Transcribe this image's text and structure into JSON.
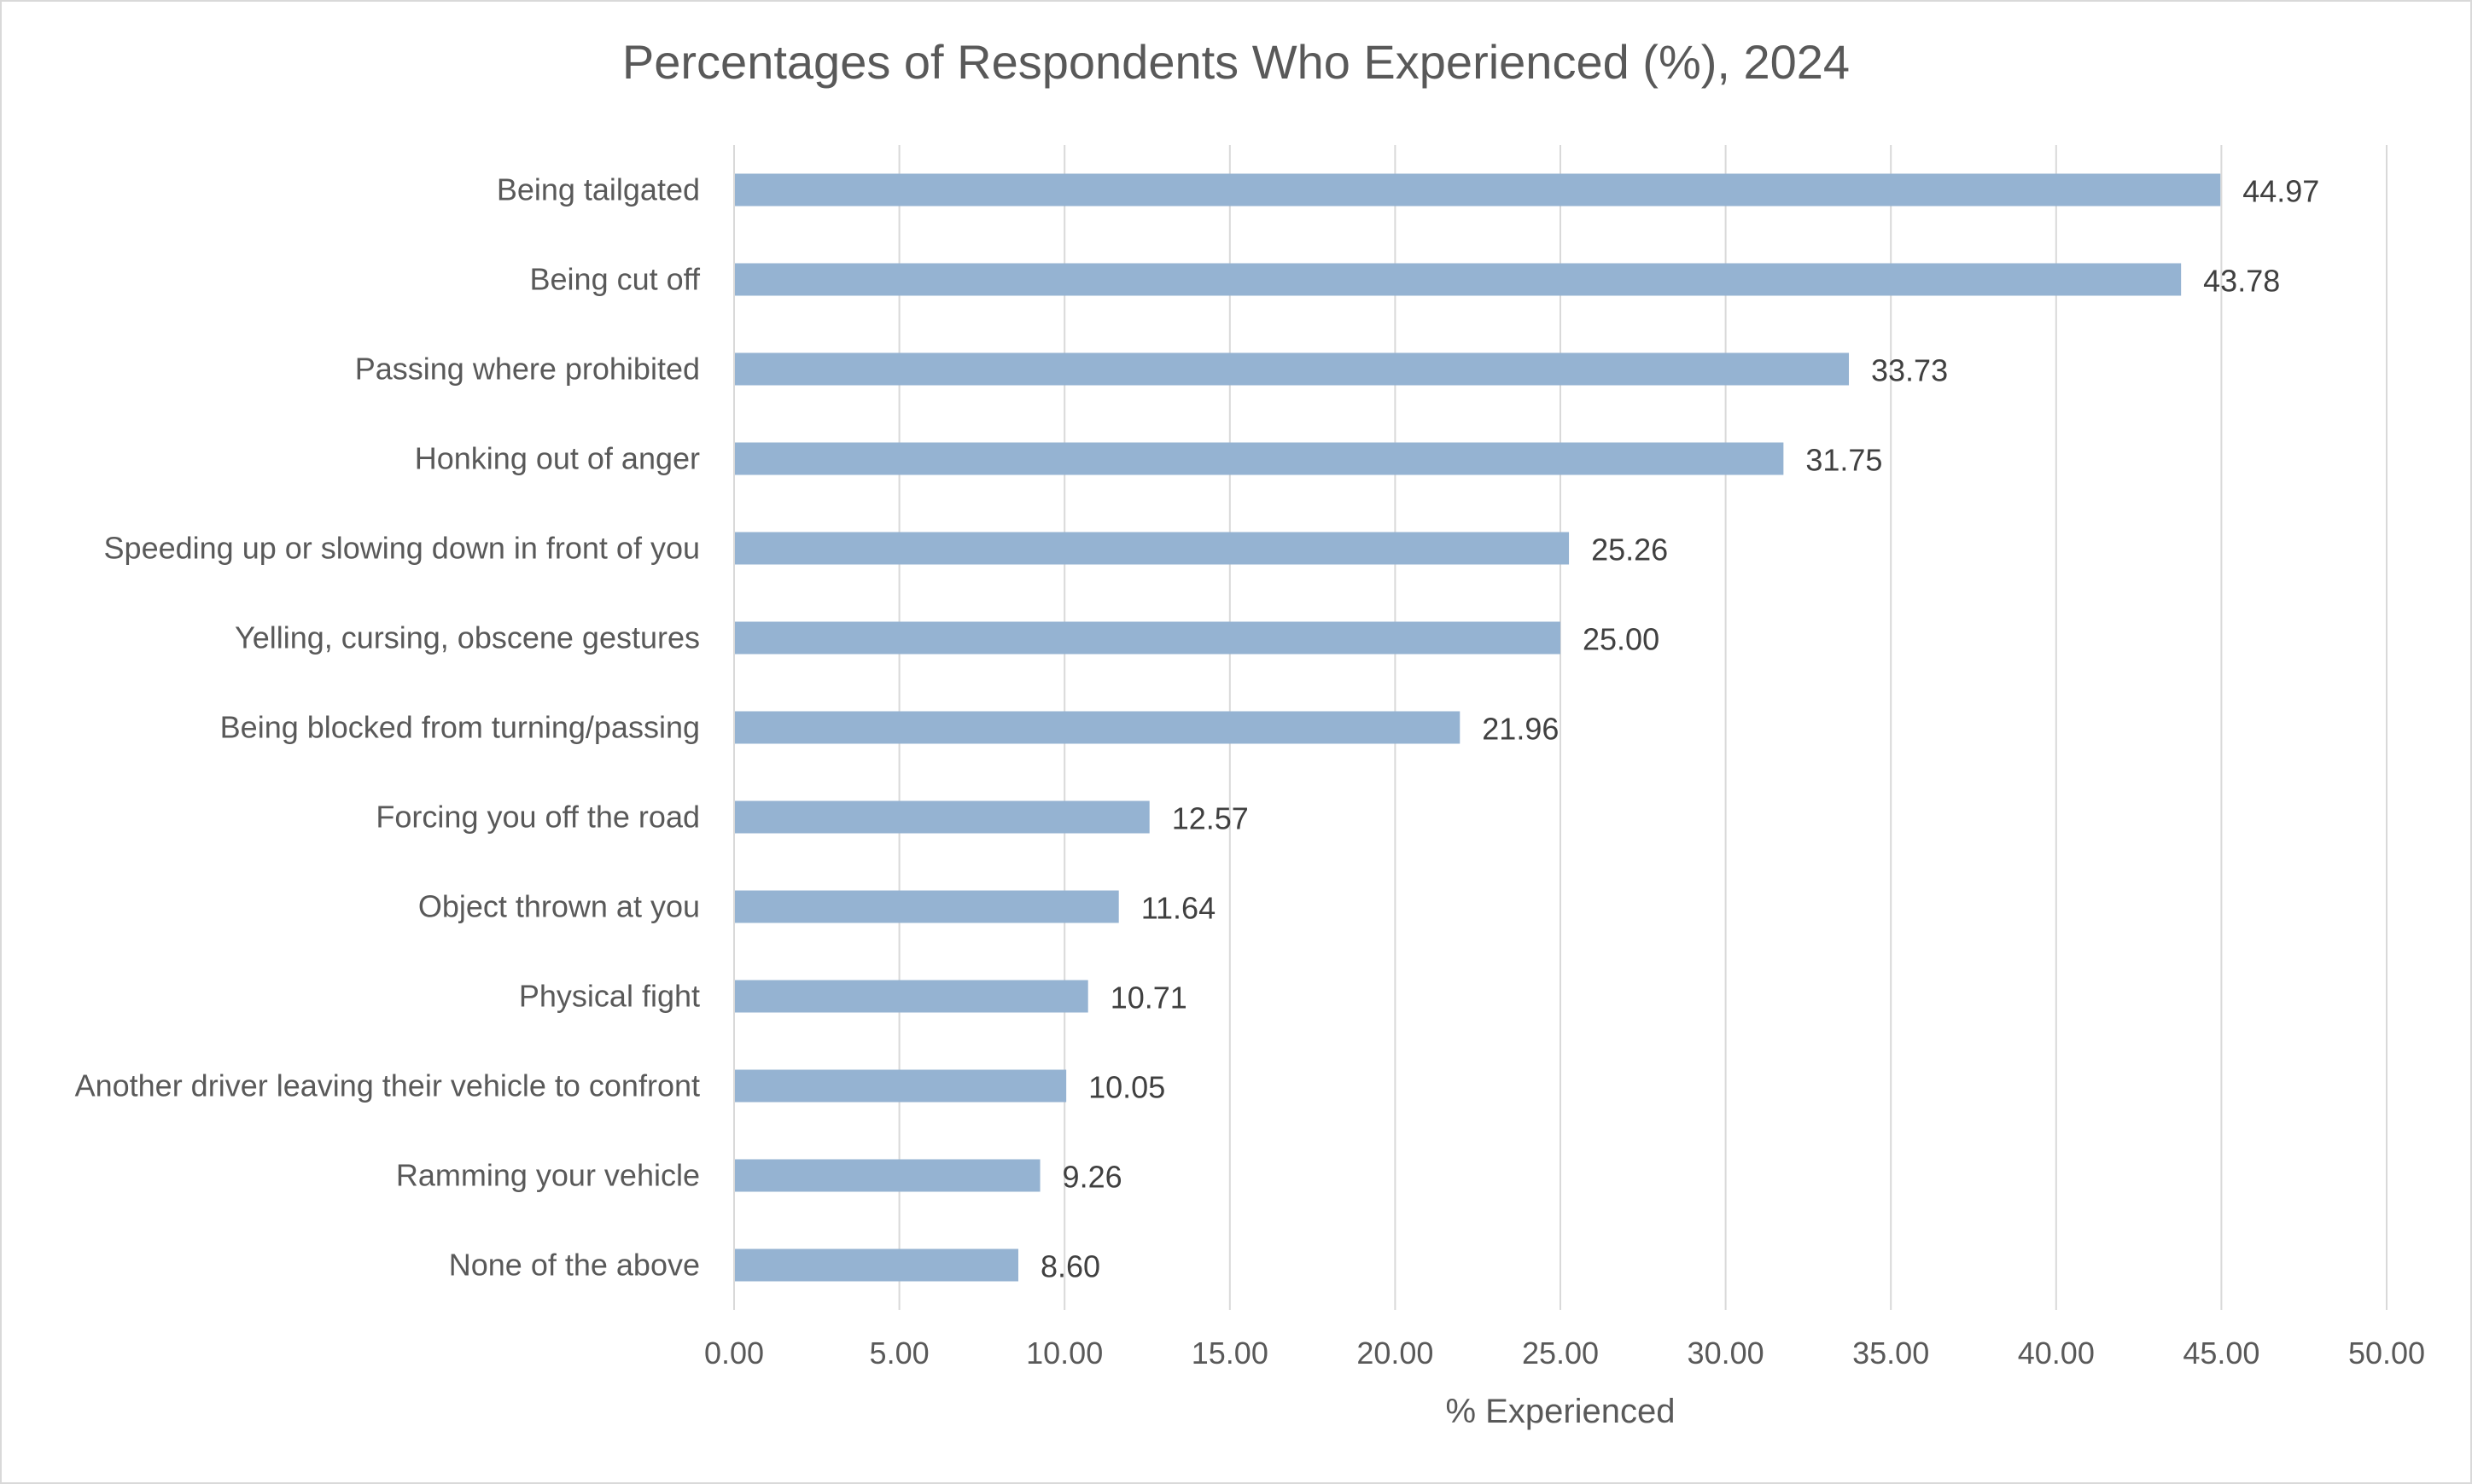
{
  "chart_data": {
    "type": "bar",
    "orientation": "horizontal",
    "title": "Percentages of Respondents Who Experienced (%), 2024",
    "xlabel": "% Experienced",
    "ylabel": "",
    "xlim": [
      0,
      50
    ],
    "x_ticks": [
      "0.00",
      "5.00",
      "10.00",
      "15.00",
      "20.00",
      "25.00",
      "30.00",
      "35.00",
      "40.00",
      "45.00",
      "50.00"
    ],
    "grid": true,
    "legend": "none",
    "bar_color": "#95b3d2",
    "categories": [
      "Being tailgated",
      "Being cut off",
      "Passing where prohibited",
      "Honking out of anger",
      "Speeding up or slowing down in front of you",
      "Yelling, cursing, obscene gestures",
      "Being blocked from turning/passing",
      "Forcing you off the road",
      "Object thrown at you",
      "Physical fight",
      "Another driver leaving their vehicle to confront",
      "Ramming your vehicle",
      "None of the above"
    ],
    "values": [
      44.97,
      43.78,
      33.73,
      31.75,
      25.26,
      25.0,
      21.96,
      12.57,
      11.64,
      10.71,
      10.05,
      9.26,
      8.6
    ],
    "data_labels": [
      "44.97",
      "43.78",
      "33.73",
      "31.75",
      "25.26",
      "25.00",
      "21.96",
      "12.57",
      "11.64",
      "10.71",
      "10.05",
      "9.26",
      "8.60"
    ]
  }
}
